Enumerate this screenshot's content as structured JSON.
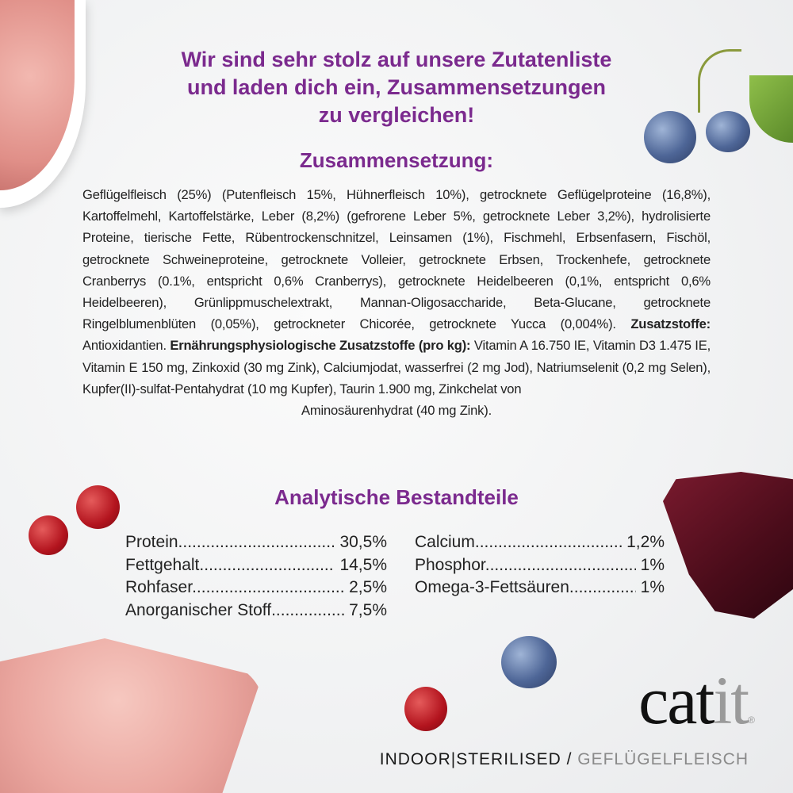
{
  "headline": [
    "Wir sind sehr stolz auf unsere Zutatenliste",
    "und laden dich ein, Zusammensetzungen",
    "zu vergleichen!"
  ],
  "composition": {
    "title": "Zusammensetzung:",
    "text1": "Geflügelfleisch (25%) (Putenfleisch 15%, Hühnerfleisch 10%), getrocknete Geflügelproteine (16,8%), Kartoffelmehl, Kartoffelstärke, Leber (8,2%) (gefrorene Leber 5%, getrocknete Leber 3,2%), hydrolisierte Proteine, tierische Fette, Rübentrockenschnitzel, Leinsamen (1%), Fischmehl, Erbsenfasern, Fischöl, getrocknete Schweineproteine, getrocknete Volleier, getrocknete Erbsen, Trockenhefe, getrocknete Cranberrys (0.1%, entspricht 0,6% Cranberrys), getrocknete Heidelbeeren (0,1%, entspricht 0,6% Heidelbeeren), Grünlippmuschelextrakt, Mannan-Oligosaccharide, Beta-Glucane, getrocknete Ringelblumenblüten (0,05%), getrockneter Chicorée, getrocknete Yucca (0,004%).",
    "additives_label": "Zusatzstoffe:",
    "additives": "Antioxidantien.",
    "nutritional_label": "Ernährungsphysiologische Zusatzstoffe (pro kg):",
    "nutritional": "Vitamin A 16.750 IE, Vitamin D3 1.475 IE, Vitamin E 150 mg, Zinkoxid (30 mg Zink), Calciumjodat, wasserfrei (2 mg Jod), Natriumselenit (0,2 mg Selen), Kupfer(II)-sulfat-Pentahydrat (10 mg Kupfer), Taurin 1.900 mg, Zinkchelat von",
    "last_line": "Aminosäurenhydrat (40 mg Zink)."
  },
  "analysis": {
    "title": "Analytische Bestandteile",
    "left": [
      {
        "name": "Protein",
        "value": "30,5%"
      },
      {
        "name": "Fettgehalt",
        "value": "14,5%"
      },
      {
        "name": "Rohfaser",
        "value": "2,5%"
      },
      {
        "name": "Anorganischer Stoff",
        "value": "7,5%"
      }
    ],
    "right": [
      {
        "name": "Calcium",
        "value": "1,2%"
      },
      {
        "name": "Phosphor",
        "value": "1%"
      },
      {
        "name": "Omega-3-Fettsäuren",
        "value": "1%"
      }
    ]
  },
  "brand": {
    "logo_main": "cat",
    "logo_accent": "it",
    "registered": "®"
  },
  "tagline": {
    "part1": "INDOOR|STERILISED / ",
    "part2": "GEFLÜGELFLEISCH"
  },
  "colors": {
    "accent": "#7b2a8e",
    "logo_grey": "#9a9a9a"
  }
}
